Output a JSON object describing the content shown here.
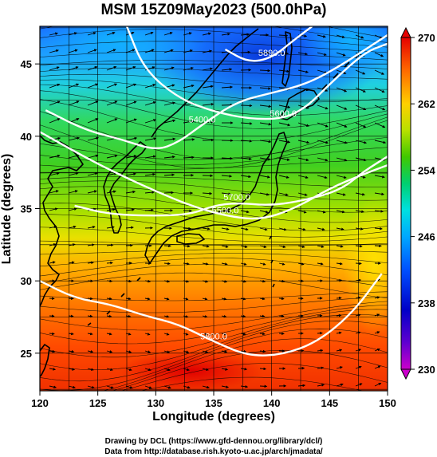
{
  "title": "MSM 15Z09May2023 (500.0hPa)",
  "xlabel": "Longitude (degrees)",
  "ylabel": "Latitude  (degrees)",
  "credits": [
    "Drawing by DCL (https://www.gfd-dennou.org/library/dcl/)",
    "Data from http://database.rish.kyoto-u.ac.jp/arch/jmadata/"
  ],
  "chart_data": {
    "type": "heatmap",
    "title": "MSM 15Z09May2023 (500.0hPa)",
    "xlabel": "Longitude (degrees)",
    "ylabel": "Latitude  (degrees)",
    "xlim": [
      120,
      150
    ],
    "ylim": [
      22.4,
      47.6
    ],
    "x_ticks": [
      120,
      125,
      130,
      135,
      140,
      145,
      150
    ],
    "y_ticks": [
      25,
      30,
      35,
      40,
      45
    ],
    "grid": true,
    "colorbar": {
      "min": 230,
      "max": 270,
      "ticks": [
        230,
        238,
        246,
        254,
        262,
        270
      ],
      "colors": [
        "#cc00cc",
        "#0000c8",
        "#0050ff",
        "#00c8ff",
        "#00d070",
        "#40c800",
        "#c8e600",
        "#ffcc00",
        "#ff5a00",
        "#e60000"
      ]
    },
    "contours": [
      {
        "label": "5400.0",
        "points": [
          [
            120.5,
            41.8
          ],
          [
            124,
            40.4
          ],
          [
            127,
            39.8
          ],
          [
            130,
            39.0
          ],
          [
            132,
            39.6
          ],
          [
            134,
            40.8
          ],
          [
            137,
            42.4
          ],
          [
            140,
            43.0
          ],
          [
            143,
            43.6
          ],
          [
            146,
            44.9
          ],
          [
            150,
            47.0
          ]
        ]
      },
      {
        "label": "5500.0",
        "points": [
          [
            120,
            40.3
          ],
          [
            124,
            38.5
          ],
          [
            127,
            37.3
          ],
          [
            130,
            36.2
          ],
          [
            133,
            35.2
          ],
          [
            136,
            34.5
          ],
          [
            139,
            34.2
          ],
          [
            142,
            35.0
          ],
          [
            145,
            36.4
          ],
          [
            148,
            37.4
          ],
          [
            150,
            38.0
          ]
        ]
      },
      {
        "label": "5600.0",
        "points": [
          [
            127.5,
            47.6
          ],
          [
            129,
            44.6
          ],
          [
            132,
            42.6
          ],
          [
            135,
            41.7
          ],
          [
            138,
            41.2
          ],
          [
            141,
            41.2
          ],
          [
            143,
            42.0
          ],
          [
            145,
            43.6
          ],
          [
            148,
            45.8
          ],
          [
            150,
            46.4
          ]
        ]
      },
      {
        "label": "5700.0",
        "points": [
          [
            123,
            35.2
          ],
          [
            126,
            34.6
          ],
          [
            130,
            34.5
          ],
          [
            133,
            34.6
          ],
          [
            135,
            35.2
          ],
          [
            137,
            35.4
          ],
          [
            140,
            35.2
          ],
          [
            143,
            35.6
          ],
          [
            146,
            36.3
          ],
          [
            148,
            37.6
          ],
          [
            150,
            38.6
          ]
        ]
      },
      {
        "label": "5800.0",
        "points": [
          [
            120,
            30.0
          ],
          [
            123,
            28.8
          ],
          [
            126,
            28.4
          ],
          [
            129,
            27.6
          ],
          [
            132,
            27.0
          ],
          [
            135,
            25.8
          ],
          [
            138,
            24.8
          ],
          [
            141,
            24.9
          ],
          [
            144,
            25.8
          ],
          [
            147,
            27.8
          ],
          [
            149.5,
            30.5
          ]
        ]
      },
      {
        "label": "5890.0",
        "points": [
          [
            136,
            46.0
          ],
          [
            138,
            45.1
          ],
          [
            140,
            45.4
          ],
          [
            142,
            46.7
          ],
          [
            143.5,
            47.6
          ]
        ]
      }
    ]
  }
}
